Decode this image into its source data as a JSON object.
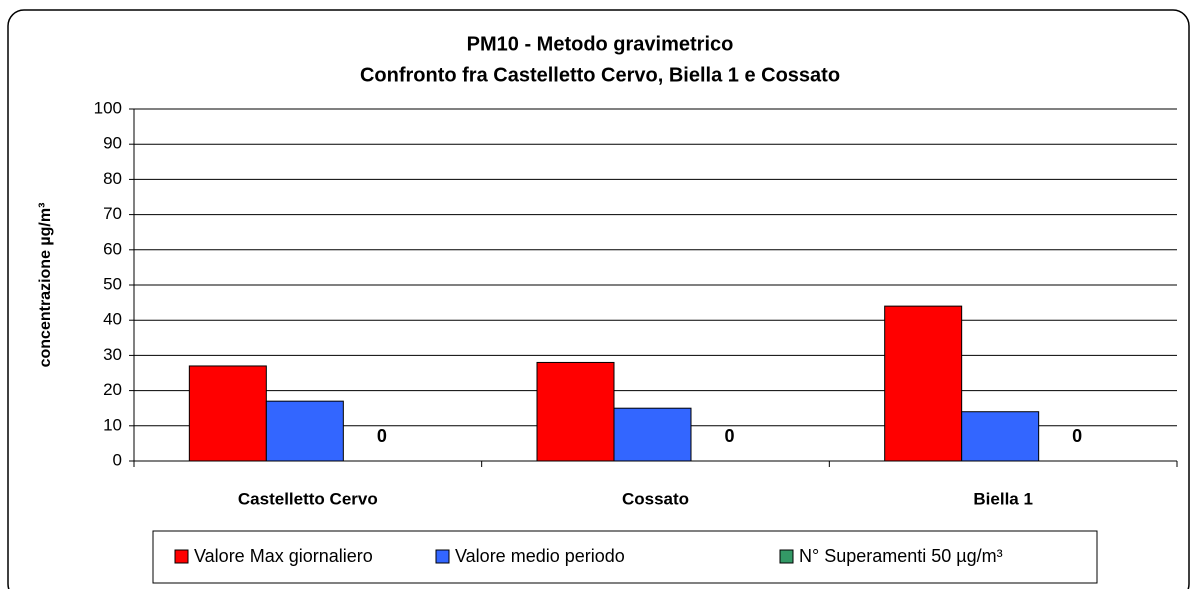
{
  "chart_data": {
    "type": "bar",
    "title": "PM10 - Metodo gravimetrico",
    "subtitle": "Confronto fra Castelletto Cervo, Biella 1 e Cossato",
    "y_label": "concentrazione µg/m³",
    "categories": [
      "Castelletto Cervo",
      "Cossato",
      "Biella 1"
    ],
    "series": [
      {
        "name": "Valore Max giornaliero",
        "color": "#ff0000",
        "values": [
          27,
          28,
          44
        ]
      },
      {
        "name": "Valore medio periodo",
        "color": "#3366ff",
        "values": [
          17,
          15,
          14
        ]
      },
      {
        "name": "N° Superamenti 50 µg/m³",
        "color": "#339966",
        "values": [
          0,
          0,
          0
        ],
        "data_labels": true
      }
    ],
    "ylim": [
      0,
      100
    ],
    "yticks": [
      0,
      10,
      20,
      30,
      40,
      50,
      60,
      70,
      80,
      90,
      100
    ],
    "grid": true,
    "legend": "bottom"
  }
}
